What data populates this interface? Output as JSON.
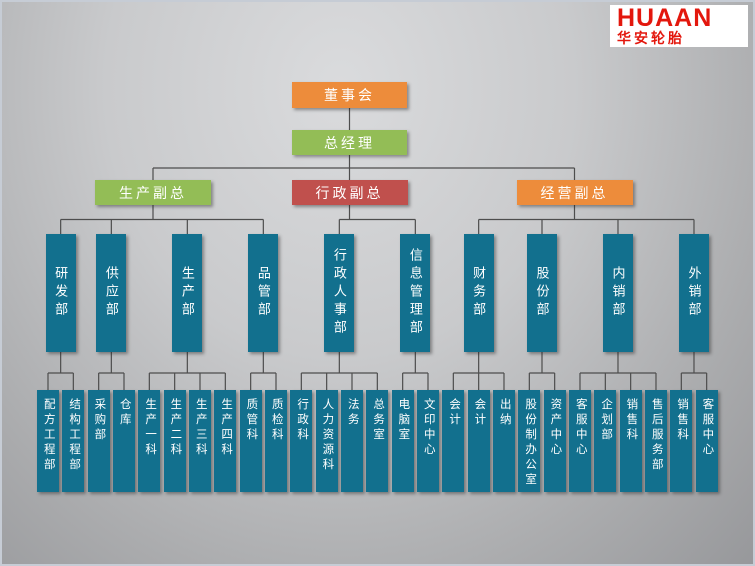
{
  "logo": {
    "brand": "HUAAN",
    "subtitle": "华安轮胎"
  },
  "org_chart": {
    "board": "董事会",
    "general_manager": "总经理",
    "vps": [
      {
        "label": "生产副总",
        "color": "green",
        "departments": [
          {
            "label": "研发部",
            "children": [
              "配方工程部",
              "结构工程部"
            ]
          },
          {
            "label": "供应部",
            "children": [
              "采购部",
              "仓库"
            ]
          },
          {
            "label": "生产部",
            "children": [
              "生产一科",
              "生产二科",
              "生产三科",
              "生产四科"
            ]
          },
          {
            "label": "品管部",
            "children": [
              "质管科",
              "质检科"
            ]
          }
        ]
      },
      {
        "label": "行政副总",
        "color": "red",
        "departments": [
          {
            "label": "行政人事部",
            "children": [
              "行政科",
              "人力资源科",
              "法务",
              "总务室"
            ]
          },
          {
            "label": "信息管理部",
            "children": [
              "电脑室",
              "文印中心"
            ]
          }
        ]
      },
      {
        "label": "经营副总",
        "color": "orange",
        "departments": [
          {
            "label": "财务部",
            "children": [
              "会计",
              "会计",
              "出纳"
            ]
          },
          {
            "label": "股份部",
            "children": [
              "股份制办公室",
              "资产中心"
            ]
          },
          {
            "label": "内销部",
            "children": [
              "客服中心",
              "企划部",
              "销售科",
              "售后服务部"
            ]
          },
          {
            "label": "外销部",
            "children": [
              "销售科",
              "客服中心"
            ]
          }
        ]
      }
    ]
  },
  "colors": {
    "orange": "#ED8C3B",
    "green": "#93BD56",
    "red": "#C0504D",
    "teal": "#12708E",
    "line": "#4D4D4D",
    "logo_red": "#E3170D"
  }
}
